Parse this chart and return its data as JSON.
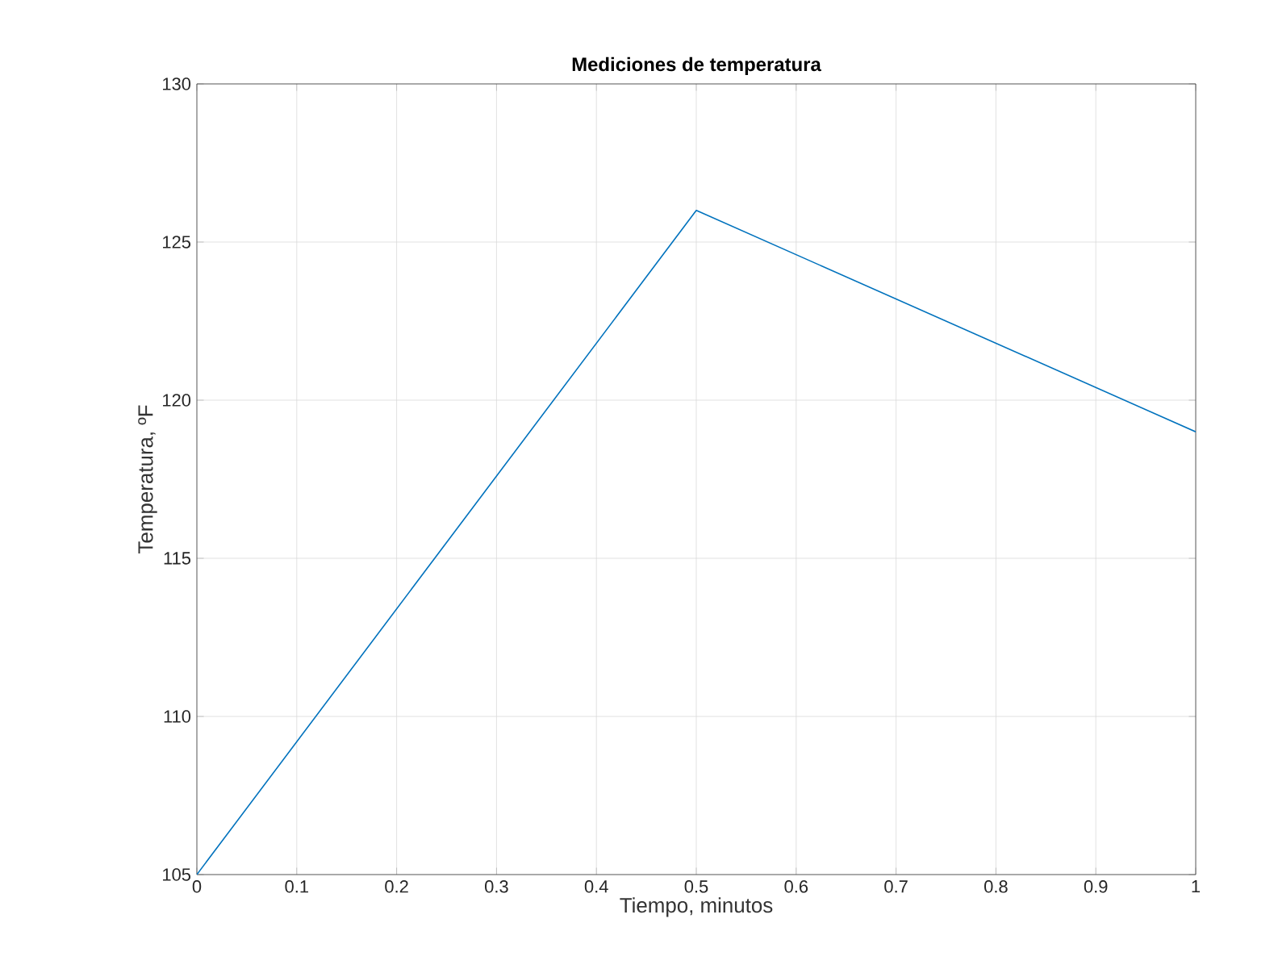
{
  "chart_data": {
    "type": "line",
    "title": "Mediciones de temperatura",
    "xlabel": "Tiempo, minutos",
    "ylabel": "Temperatura, ºF",
    "x": [
      0,
      0.5,
      1
    ],
    "series": [
      {
        "color": "#0072bd",
        "values": [
          105,
          126,
          119
        ]
      }
    ],
    "xlim": [
      0,
      1
    ],
    "ylim": [
      105,
      130
    ],
    "xticks": [
      0,
      0.1,
      0.2,
      0.3,
      0.4,
      0.5,
      0.6,
      0.7,
      0.8,
      0.9,
      1
    ],
    "yticks": [
      105,
      110,
      115,
      120,
      125,
      130
    ],
    "grid": true,
    "marker": "none",
    "line_style": "solid"
  }
}
